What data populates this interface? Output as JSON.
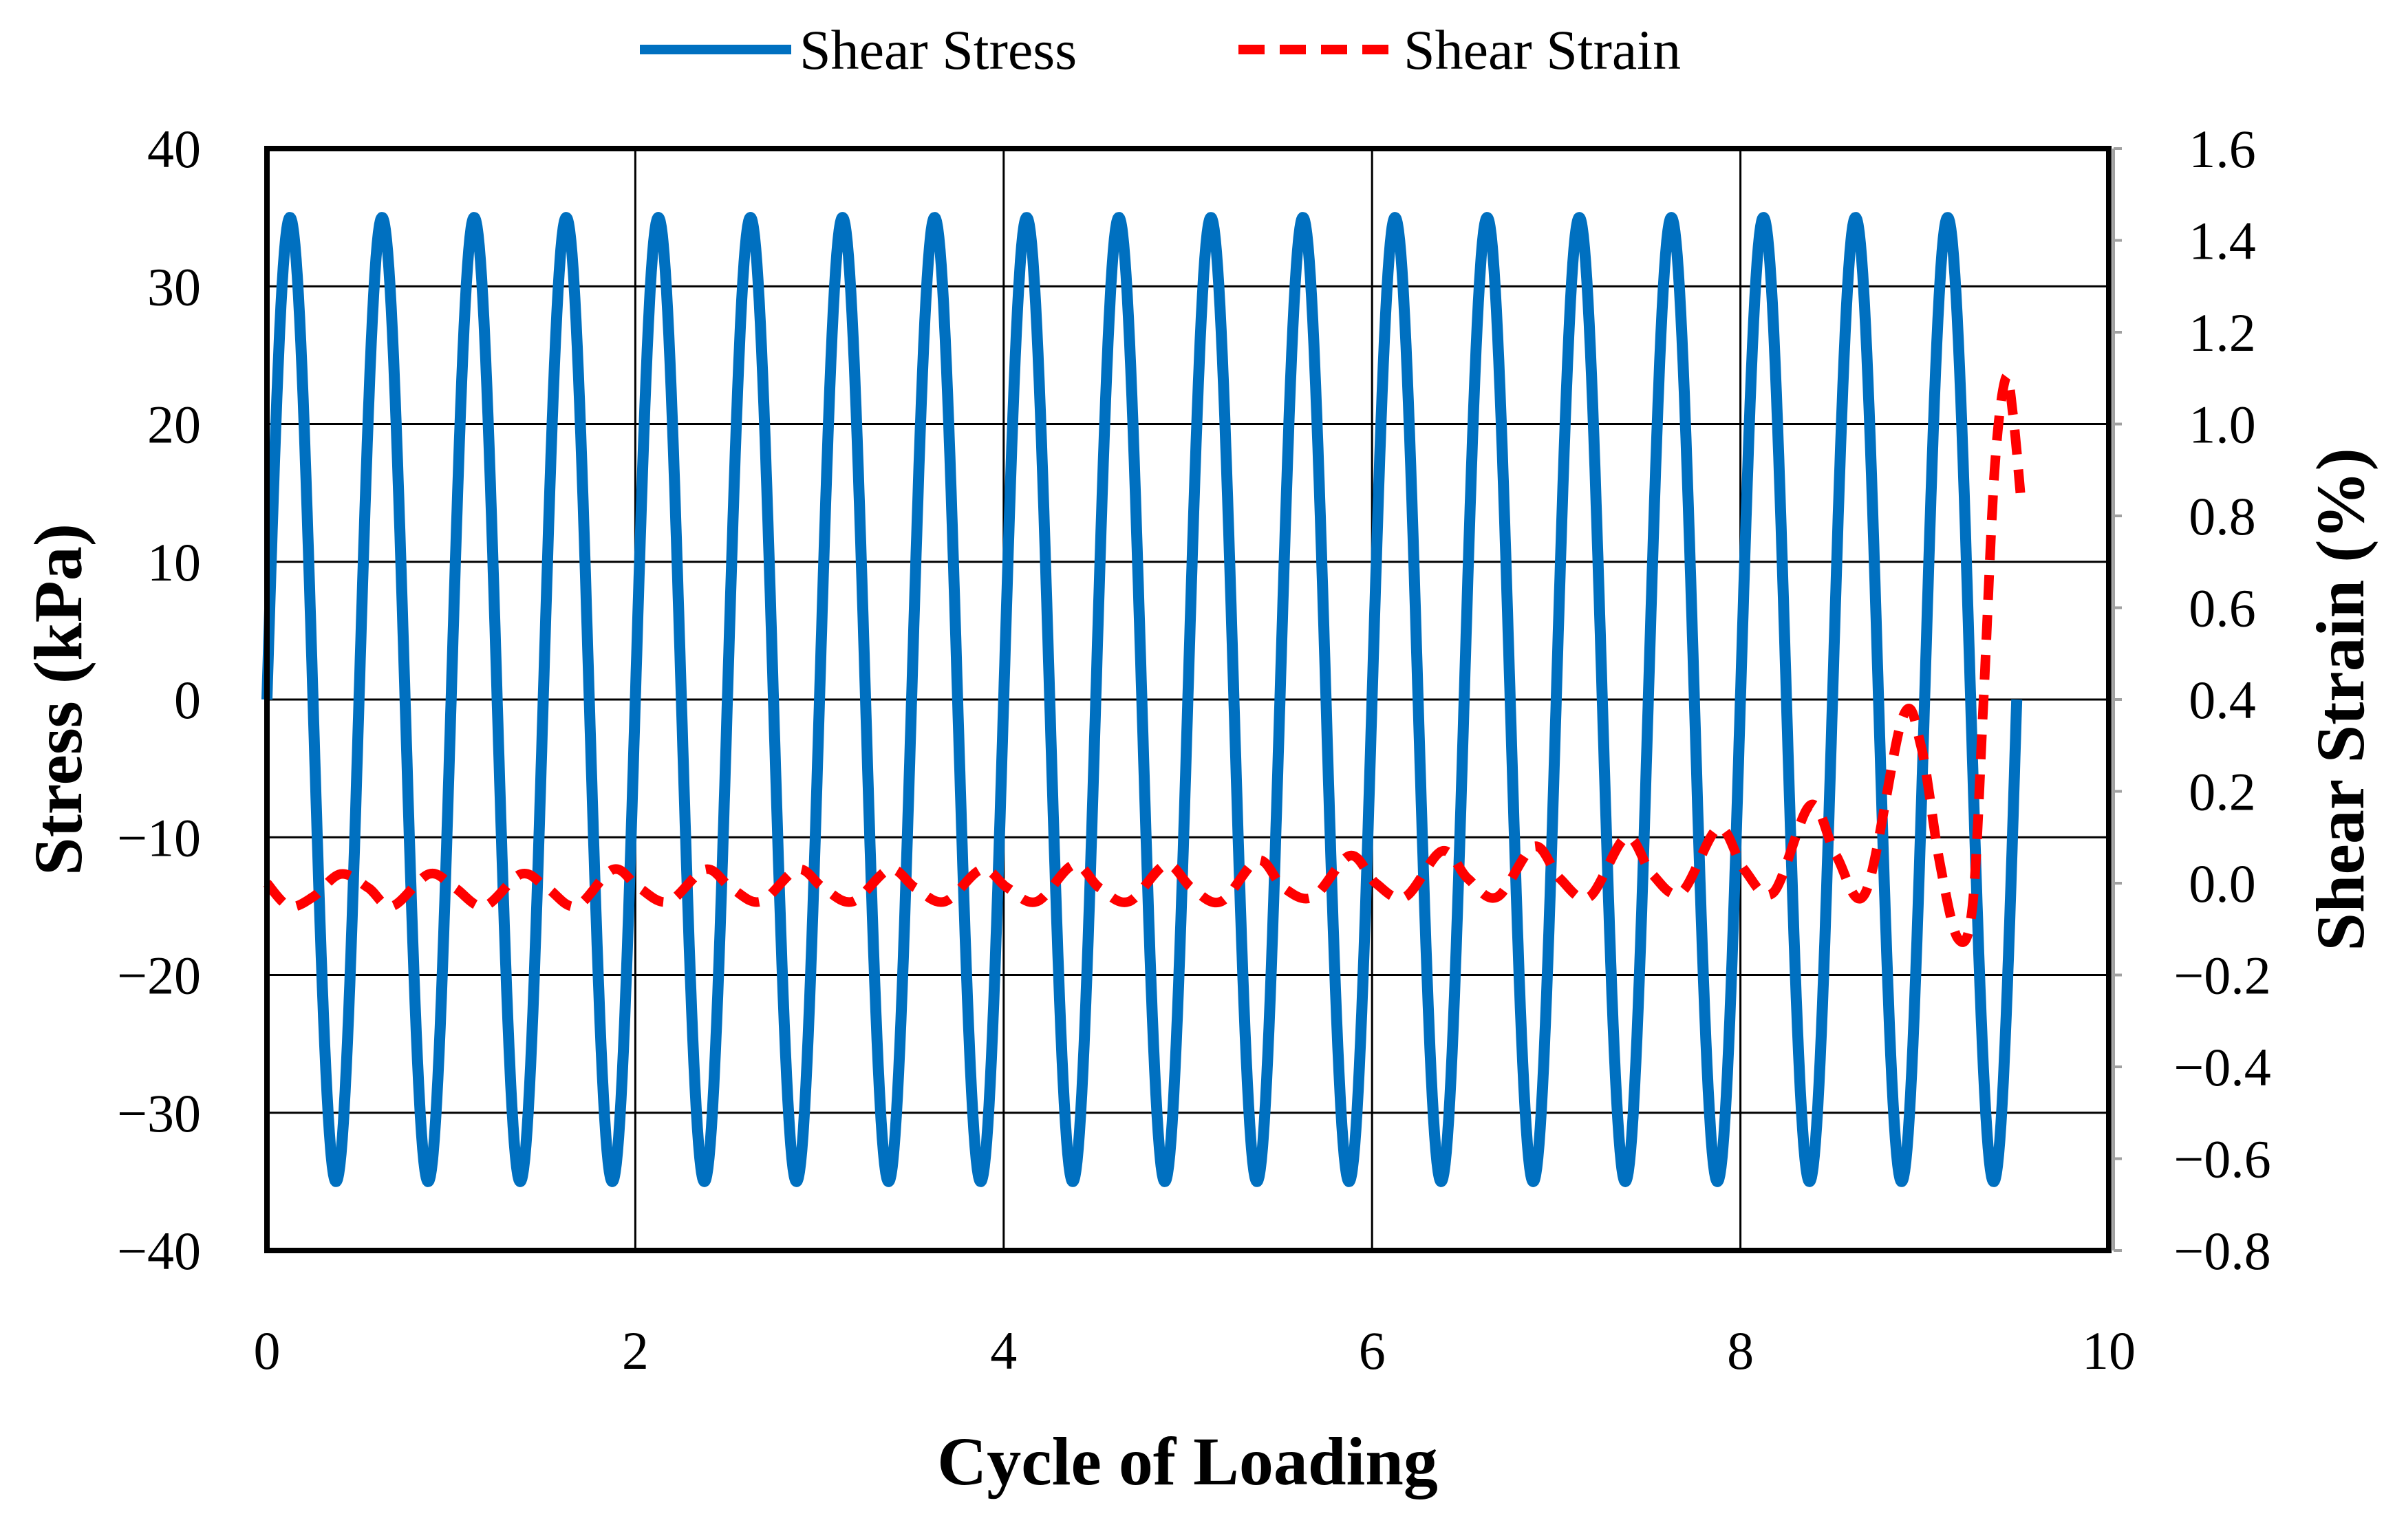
{
  "chart_data": {
    "type": "line",
    "title": "",
    "xlabel": "Cycle of Loading",
    "ylabel": "Stress (kPa)",
    "y2label": "Shear Strain (%)",
    "xlim": [
      0,
      10
    ],
    "ylim": [
      -40,
      40
    ],
    "y2lim": [
      -0.8,
      1.6
    ],
    "x_ticks": [
      "0",
      "2",
      "4",
      "6",
      "8",
      "10"
    ],
    "y_ticks": [
      "40",
      "30",
      "20",
      "10",
      "0",
      "−10",
      "−20",
      "−30",
      "−40"
    ],
    "y2_ticks": [
      "1.6",
      "1.4",
      "1.2",
      "1.0",
      "0.8",
      "0.6",
      "0.4",
      "0.2",
      "0.0",
      "−0.2",
      "−0.4",
      "−0.6",
      "−0.8"
    ],
    "grid": true,
    "legend_position": "top-center",
    "series": [
      {
        "name": "Shear Stress",
        "axis": "left",
        "color": "#0070C0",
        "style": "solid",
        "amplitude": 35,
        "cycles_per_unit": 2,
        "x_start": 0,
        "x_end": 9.5
      },
      {
        "name": "Shear Strain",
        "axis": "right",
        "color": "#FF0000",
        "style": "dashed",
        "points": [
          [
            0.0,
            0.0
          ],
          [
            0.12,
            -0.05
          ],
          [
            0.25,
            -0.03
          ],
          [
            0.4,
            0.02
          ],
          [
            0.55,
            -0.01
          ],
          [
            0.68,
            -0.05
          ],
          [
            0.88,
            0.02
          ],
          [
            1.02,
            -0.01
          ],
          [
            1.18,
            -0.05
          ],
          [
            1.38,
            0.02
          ],
          [
            1.52,
            -0.01
          ],
          [
            1.68,
            -0.05
          ],
          [
            1.88,
            0.03
          ],
          [
            2.02,
            -0.01
          ],
          [
            2.18,
            -0.04
          ],
          [
            2.38,
            0.03
          ],
          [
            2.52,
            -0.01
          ],
          [
            2.68,
            -0.04
          ],
          [
            2.88,
            0.03
          ],
          [
            3.02,
            -0.01
          ],
          [
            3.18,
            -0.04
          ],
          [
            3.38,
            0.03
          ],
          [
            3.52,
            -0.01
          ],
          [
            3.68,
            -0.04
          ],
          [
            3.88,
            0.03
          ],
          [
            4.02,
            -0.01
          ],
          [
            4.18,
            -0.04
          ],
          [
            4.38,
            0.04
          ],
          [
            4.52,
            -0.01
          ],
          [
            4.68,
            -0.04
          ],
          [
            4.88,
            0.04
          ],
          [
            5.02,
            -0.01
          ],
          [
            5.18,
            -0.04
          ],
          [
            5.38,
            0.05
          ],
          [
            5.52,
            -0.01
          ],
          [
            5.68,
            -0.03
          ],
          [
            5.88,
            0.06
          ],
          [
            6.02,
            0.0
          ],
          [
            6.18,
            -0.03
          ],
          [
            6.38,
            0.07
          ],
          [
            6.52,
            0.01
          ],
          [
            6.68,
            -0.03
          ],
          [
            6.88,
            0.08
          ],
          [
            7.02,
            0.01
          ],
          [
            7.18,
            -0.03
          ],
          [
            7.38,
            0.1
          ],
          [
            7.52,
            0.02
          ],
          [
            7.68,
            -0.02
          ],
          [
            7.88,
            0.12
          ],
          [
            8.02,
            0.03
          ],
          [
            8.18,
            -0.02
          ],
          [
            8.38,
            0.17
          ],
          [
            8.52,
            0.06
          ],
          [
            8.68,
            -0.02
          ],
          [
            8.88,
            0.36
          ],
          [
            8.98,
            0.3
          ],
          [
            9.08,
            0.05
          ],
          [
            9.18,
            -0.12
          ],
          [
            9.26,
            -0.05
          ],
          [
            9.32,
            0.4
          ],
          [
            9.38,
            0.9
          ],
          [
            9.44,
            1.1
          ],
          [
            9.48,
            1.02
          ],
          [
            9.52,
            0.85
          ]
        ]
      }
    ]
  }
}
